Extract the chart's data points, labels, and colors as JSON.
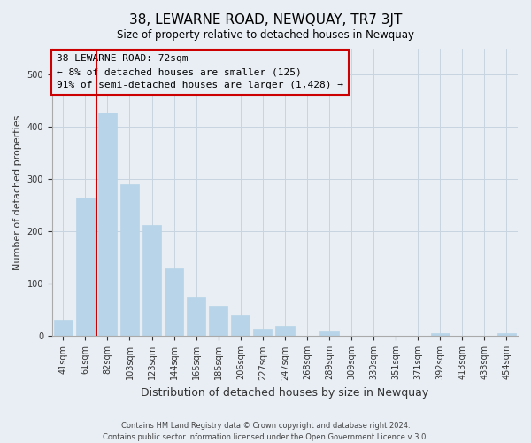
{
  "title": "38, LEWARNE ROAD, NEWQUAY, TR7 3JT",
  "subtitle": "Size of property relative to detached houses in Newquay",
  "xlabel": "Distribution of detached houses by size in Newquay",
  "ylabel": "Number of detached properties",
  "bar_labels": [
    "41sqm",
    "61sqm",
    "82sqm",
    "103sqm",
    "123sqm",
    "144sqm",
    "165sqm",
    "185sqm",
    "206sqm",
    "227sqm",
    "247sqm",
    "268sqm",
    "289sqm",
    "309sqm",
    "330sqm",
    "351sqm",
    "371sqm",
    "392sqm",
    "413sqm",
    "433sqm",
    "454sqm"
  ],
  "bar_values": [
    32,
    265,
    428,
    291,
    212,
    129,
    75,
    59,
    40,
    15,
    20,
    0,
    10,
    0,
    0,
    0,
    0,
    5,
    0,
    0,
    5
  ],
  "bar_color": "#b8d4e8",
  "bar_edge_color": "#b8d4e8",
  "marker_color": "#cc0000",
  "marker_label": "38 LEWARNE ROAD: 72sqm",
  "annotation_line1": "← 8% of detached houses are smaller (125)",
  "annotation_line2": "91% of semi-detached houses are larger (1,428) →",
  "ylim": [
    0,
    550
  ],
  "box_color": "#cc0000",
  "footnote1": "Contains HM Land Registry data © Crown copyright and database right 2024.",
  "footnote2": "Contains public sector information licensed under the Open Government Licence v 3.0.",
  "bg_color": "#e8eef4",
  "plot_bg_color": "#e8eef4",
  "grid_color": "#c8d4e0"
}
